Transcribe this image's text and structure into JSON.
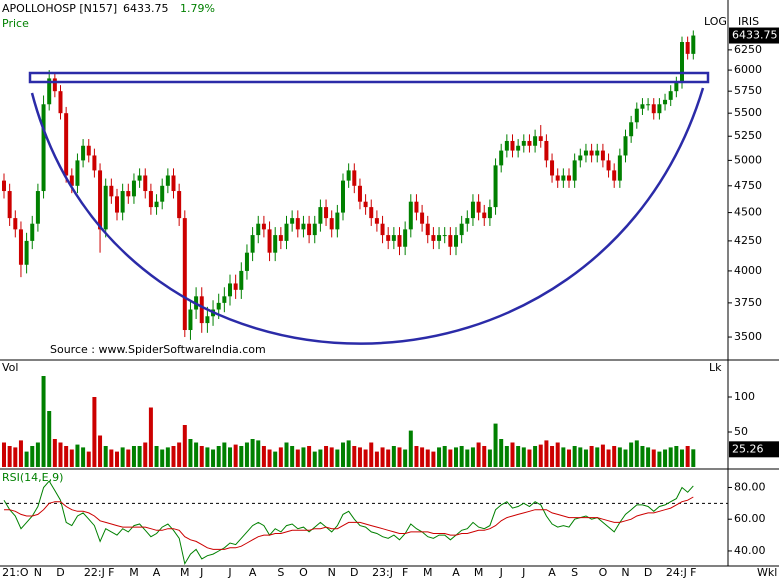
{
  "header": {
    "symbol": "APOLLOHOSP [N157]",
    "change": "1.79%",
    "period_label": "Wkl"
  },
  "chart_data": [
    {
      "type": "candlestick",
      "title": "Price",
      "scale_label": "LOG",
      "source_label": "IRIS",
      "annotation": "Source : www.SpiderSoftwareIndia.com",
      "log": true,
      "up_color": "#008000",
      "down_color": "#cc0000",
      "ylim": [
        3355,
        6706
      ],
      "yticks": [
        3500,
        3750,
        4000,
        4250,
        4500,
        4750,
        5000,
        5250,
        5500,
        5750,
        6000,
        6250
      ],
      "categories": [
        null,
        null,
        "21:O",
        null,
        null,
        null,
        "N",
        null,
        null,
        null,
        "D",
        null,
        null,
        null,
        null,
        null,
        "22:J",
        null,
        null,
        "F",
        null,
        null,
        null,
        "M",
        null,
        null,
        null,
        "A",
        null,
        null,
        null,
        null,
        "M",
        null,
        null,
        "J",
        null,
        null,
        null,
        null,
        "J",
        null,
        null,
        null,
        "A",
        null,
        null,
        null,
        null,
        "S",
        null,
        null,
        null,
        "O",
        null,
        null,
        null,
        null,
        "N",
        null,
        null,
        null,
        "D",
        null,
        null,
        null,
        null,
        "23:J",
        null,
        null,
        null,
        "F",
        null,
        null,
        null,
        "M",
        null,
        null,
        null,
        null,
        "A",
        null,
        null,
        null,
        "M",
        null,
        null,
        null,
        "J",
        null,
        null,
        null,
        "J",
        null,
        null,
        null,
        null,
        "A",
        null,
        null,
        null,
        "S",
        null,
        null,
        null,
        null,
        "O",
        null,
        null,
        null,
        "N",
        null,
        null,
        null,
        "D",
        null,
        null,
        null,
        null,
        "24:J",
        null,
        null,
        "F"
      ],
      "open": [
        4800,
        4700,
        4450,
        4350,
        4050,
        4250,
        4400,
        4700,
        5600,
        5900,
        5750,
        5500,
        4850,
        4750,
        5000,
        5150,
        5050,
        4900,
        4350,
        4750,
        4650,
        4500,
        4700,
        4650,
        4800,
        4850,
        4700,
        4550,
        4600,
        4750,
        4850,
        4700,
        4450,
        3550,
        3700,
        3800,
        3600,
        3650,
        3700,
        3750,
        3800,
        3900,
        3850,
        4000,
        4150,
        4300,
        4400,
        4350,
        4150,
        4300,
        4250,
        4400,
        4450,
        4350,
        4400,
        4300,
        4400,
        4550,
        4450,
        4350,
        4500,
        4800,
        4900,
        4750,
        4600,
        4550,
        4450,
        4400,
        4300,
        4250,
        4300,
        4200,
        4350,
        4600,
        4500,
        4400,
        4300,
        4250,
        4300,
        4300,
        4200,
        4300,
        4400,
        4450,
        4600,
        4500,
        4450,
        4550,
        4950,
        5100,
        5200,
        5100,
        5150,
        5200,
        5150,
        5250,
        5200,
        5000,
        4850,
        4800,
        4850,
        4800,
        5000,
        5050,
        5100,
        5050,
        5100,
        5000,
        4900,
        4800,
        5050,
        5250,
        5400,
        5550,
        5600,
        5600,
        5500,
        5600,
        5650,
        5750,
        5850,
        6350,
        6200
      ],
      "high": [
        4870,
        4770,
        4520,
        4420,
        4320,
        4470,
        4770,
        5700,
        6000,
        5970,
        5820,
        5570,
        4920,
        5070,
        5220,
        5220,
        5120,
        4970,
        4820,
        4820,
        4720,
        4770,
        4770,
        4870,
        4920,
        4920,
        4770,
        4670,
        4820,
        4920,
        4920,
        4770,
        4520,
        3770,
        3870,
        3870,
        3720,
        3770,
        3820,
        3870,
        3970,
        3970,
        4070,
        4220,
        4370,
        4470,
        4470,
        4420,
        4370,
        4370,
        4470,
        4520,
        4520,
        4470,
        4470,
        4470,
        4620,
        4620,
        4520,
        4570,
        4870,
        4970,
        4970,
        4820,
        4670,
        4620,
        4520,
        4470,
        4370,
        4370,
        4370,
        4420,
        4670,
        4670,
        4570,
        4470,
        4370,
        4370,
        4370,
        4370,
        4370,
        4470,
        4520,
        4670,
        4670,
        4570,
        4620,
        5020,
        5170,
        5270,
        5270,
        5220,
        5270,
        5270,
        5320,
        5370,
        5270,
        5070,
        4920,
        4920,
        4920,
        5070,
        5120,
        5170,
        5170,
        5170,
        5170,
        5070,
        4970,
        5120,
        5320,
        5470,
        5620,
        5670,
        5670,
        5670,
        5670,
        5720,
        5820,
        5920,
        6420,
        6420,
        6500
      ],
      "low": [
        4630,
        4380,
        4280,
        3950,
        3980,
        4180,
        4330,
        4630,
        5530,
        5680,
        5430,
        4780,
        4680,
        4680,
        4930,
        4980,
        4830,
        4150,
        4280,
        4580,
        4430,
        4430,
        4580,
        4580,
        4730,
        4630,
        4480,
        4480,
        4530,
        4680,
        4630,
        4380,
        3500,
        3480,
        3630,
        3530,
        3530,
        3580,
        3630,
        3680,
        3730,
        3780,
        3780,
        3930,
        4080,
        4230,
        4280,
        4080,
        4080,
        4180,
        4180,
        4330,
        4280,
        4280,
        4230,
        4230,
        4330,
        4380,
        4280,
        4280,
        4430,
        4730,
        4680,
        4530,
        4480,
        4380,
        4330,
        4230,
        4180,
        4180,
        4130,
        4130,
        4280,
        4430,
        4330,
        4230,
        4180,
        4180,
        4230,
        4130,
        4130,
        4230,
        4330,
        4380,
        4430,
        4380,
        4380,
        4480,
        4880,
        5030,
        5030,
        5030,
        5080,
        5080,
        5080,
        5130,
        4930,
        4780,
        4730,
        4730,
        4730,
        4730,
        4930,
        4980,
        4980,
        4980,
        4930,
        4830,
        4730,
        4730,
        4980,
        5180,
        5330,
        5480,
        5530,
        5430,
        5430,
        5530,
        5580,
        5680,
        5780,
        6130,
        6130
      ],
      "close": [
        4700,
        4450,
        4350,
        4050,
        4250,
        4400,
        4700,
        5600,
        5900,
        5750,
        5500,
        4850,
        4750,
        5000,
        5150,
        5050,
        4900,
        4350,
        4750,
        4650,
        4500,
        4700,
        4650,
        4800,
        4850,
        4700,
        4550,
        4600,
        4750,
        4850,
        4700,
        4450,
        3550,
        3700,
        3800,
        3600,
        3650,
        3700,
        3750,
        3800,
        3900,
        3850,
        4000,
        4150,
        4300,
        4400,
        4350,
        4150,
        4300,
        4250,
        4400,
        4450,
        4350,
        4400,
        4300,
        4400,
        4550,
        4450,
        4350,
        4500,
        4800,
        4900,
        4750,
        4600,
        4550,
        4450,
        4400,
        4300,
        4250,
        4300,
        4200,
        4350,
        4600,
        4500,
        4400,
        4300,
        4250,
        4300,
        4300,
        4200,
        4300,
        4400,
        4450,
        4600,
        4500,
        4450,
        4550,
        4950,
        5100,
        5200,
        5100,
        5150,
        5200,
        5150,
        5250,
        5200,
        5000,
        4850,
        4800,
        4850,
        4800,
        5000,
        5050,
        5100,
        5050,
        5100,
        5000,
        4900,
        4800,
        5050,
        5250,
        5400,
        5550,
        5600,
        5600,
        5500,
        5600,
        5650,
        5750,
        5850,
        6350,
        6200,
        6433.75
      ]
    },
    {
      "type": "bar",
      "title": "Vol",
      "unit_label": "Lk",
      "ylim": [
        0,
        150
      ],
      "yticks": [
        50,
        100
      ],
      "values": [
        35,
        30,
        28,
        38,
        22,
        30,
        35,
        130,
        80,
        40,
        35,
        30,
        25,
        32,
        28,
        22,
        100,
        45,
        30,
        25,
        22,
        28,
        25,
        30,
        30,
        35,
        85,
        30,
        25,
        28,
        30,
        35,
        60,
        40,
        35,
        30,
        28,
        25,
        30,
        35,
        28,
        32,
        30,
        35,
        40,
        38,
        30,
        25,
        22,
        28,
        35,
        30,
        25,
        28,
        30,
        22,
        25,
        30,
        28,
        25,
        35,
        38,
        30,
        28,
        25,
        35,
        22,
        28,
        25,
        30,
        28,
        25,
        52,
        30,
        28,
        25,
        22,
        28,
        30,
        25,
        28,
        30,
        25,
        28,
        35,
        30,
        25,
        62,
        40,
        30,
        35,
        30,
        28,
        25,
        30,
        32,
        38,
        30,
        35,
        28,
        25,
        30,
        28,
        25,
        30,
        28,
        32,
        25,
        30,
        28,
        25,
        35,
        38,
        30,
        28,
        25,
        22,
        25,
        28,
        30,
        25,
        30,
        25.26
      ]
    },
    {
      "type": "line",
      "title": "RSI(14,E,9)",
      "ylim": [
        28,
        91
      ],
      "yticks": [
        {
          "value": 40,
          "label": "40.00"
        },
        {
          "value": 60,
          "label": "60.00"
        },
        {
          "value": 80,
          "label": "80.00"
        }
      ],
      "ref_line": 70,
      "series": [
        {
          "color": "#008000",
          "values": [
            72,
            66,
            62,
            54,
            58,
            62,
            68,
            80,
            84,
            78,
            72,
            58,
            56,
            62,
            64,
            60,
            56,
            46,
            54,
            52,
            50,
            54,
            52,
            56,
            57,
            53,
            49,
            51,
            55,
            57,
            53,
            48,
            32,
            38,
            41,
            35,
            37,
            38,
            40,
            42,
            45,
            44,
            48,
            52,
            56,
            58,
            56,
            50,
            54,
            52,
            56,
            57,
            54,
            55,
            52,
            55,
            58,
            55,
            52,
            56,
            63,
            65,
            60,
            56,
            55,
            52,
            51,
            49,
            48,
            50,
            47,
            51,
            57,
            54,
            52,
            49,
            48,
            50,
            50,
            47,
            50,
            53,
            54,
            58,
            55,
            54,
            56,
            66,
            69,
            71,
            67,
            68,
            70,
            68,
            71,
            69,
            62,
            57,
            55,
            56,
            55,
            60,
            61,
            62,
            60,
            61,
            58,
            55,
            52,
            58,
            63,
            66,
            69,
            69,
            68,
            65,
            68,
            69,
            71,
            73,
            80,
            77,
            81
          ]
        },
        {
          "color": "#cc0000",
          "values": [
            66,
            66,
            65,
            63,
            62,
            62,
            63,
            66,
            70,
            71,
            71,
            68,
            66,
            65,
            65,
            64,
            62,
            59,
            58,
            57,
            56,
            55,
            55,
            55,
            55,
            55,
            54,
            53,
            53,
            54,
            54,
            53,
            49,
            47,
            46,
            44,
            42,
            41,
            41,
            41,
            42,
            42,
            43,
            45,
            47,
            49,
            50,
            50,
            51,
            51,
            52,
            53,
            53,
            53,
            53,
            54,
            54,
            55,
            54,
            54,
            56,
            58,
            58,
            58,
            57,
            56,
            55,
            54,
            53,
            52,
            51,
            51,
            52,
            52,
            52,
            52,
            51,
            51,
            51,
            50,
            50,
            51,
            51,
            52,
            53,
            53,
            54,
            56,
            59,
            61,
            62,
            63,
            64,
            65,
            66,
            66,
            66,
            64,
            63,
            62,
            61,
            61,
            61,
            61,
            61,
            61,
            60,
            59,
            58,
            58,
            59,
            60,
            62,
            63,
            64,
            64,
            65,
            66,
            67,
            69,
            71,
            72,
            74
          ]
        }
      ]
    }
  ]
}
